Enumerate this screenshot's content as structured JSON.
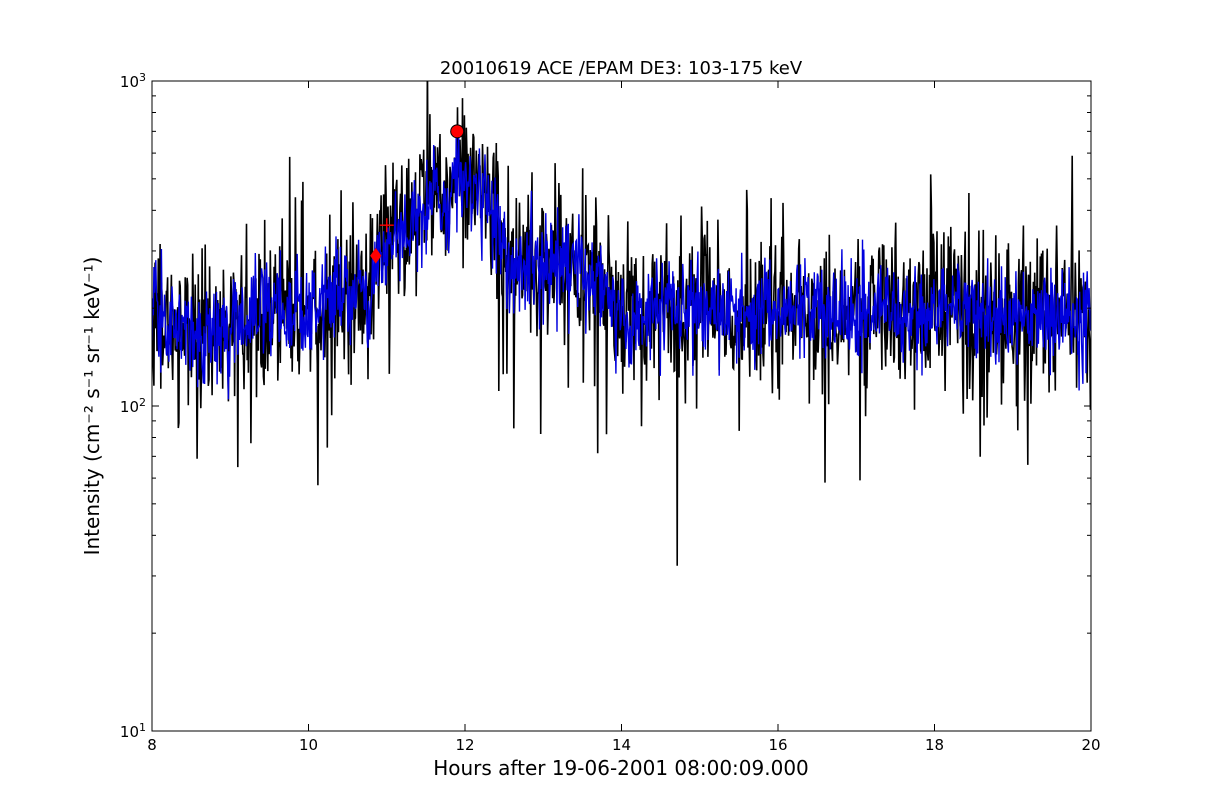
{
  "chart_data": {
    "type": "line",
    "title": "20010619 ACE /EPAM DE3: 103-175 keV",
    "xlabel": "Hours after 19-06-2001 08:00:09.000",
    "ylabel": "Intensity (cm⁻² s⁻¹ sr⁻¹ keV⁻¹)",
    "xlim": [
      8,
      20
    ],
    "ylim": [
      10,
      1000
    ],
    "yscale": "log",
    "grid": false,
    "x_ticks": [
      8,
      10,
      12,
      14,
      16,
      18,
      20
    ],
    "x_tick_labels": [
      "8",
      "10",
      "12",
      "14",
      "16",
      "18",
      "20"
    ],
    "y_ticks": [
      10,
      100,
      1000
    ],
    "y_tick_labels": [
      {
        "base": "10",
        "exp": "1"
      },
      {
        "base": "10",
        "exp": "2"
      },
      {
        "base": "10",
        "exp": "3"
      }
    ],
    "series": [
      {
        "color": "#000000",
        "x": [
          8.0,
          8.25,
          8.5,
          8.75,
          9.0,
          9.25,
          9.5,
          9.75,
          10.0,
          10.25,
          10.5,
          10.75,
          10.85,
          11.0,
          11.25,
          11.5,
          11.6,
          11.75,
          11.9,
          12.0,
          12.1,
          12.25,
          12.4,
          12.5,
          12.75,
          13.0,
          13.25,
          13.5,
          13.75,
          14.0,
          14.25,
          14.5,
          14.75,
          15.0,
          15.25,
          15.5,
          15.75,
          16.0,
          16.25,
          16.5,
          16.75,
          17.0,
          17.25,
          17.5,
          17.75,
          18.0,
          18.25,
          18.5,
          18.75,
          19.0,
          19.25,
          19.5,
          19.75,
          20.0
        ],
        "y": [
          200,
          180,
          170,
          160,
          175,
          200,
          210,
          205,
          200,
          215,
          240,
          210,
          250,
          330,
          340,
          420,
          500,
          400,
          560,
          500,
          480,
          470,
          380,
          300,
          260,
          280,
          270,
          260,
          250,
          190,
          185,
          210,
          200,
          205,
          195,
          200,
          190,
          205,
          210,
          200,
          195,
          205,
          200,
          195,
          190,
          200,
          205,
          195,
          190,
          190,
          195,
          200,
          190,
          185
        ]
      },
      {
        "color": "#0000dd",
        "x": [
          8.0,
          8.25,
          8.5,
          8.75,
          9.0,
          9.25,
          9.5,
          9.75,
          10.0,
          10.25,
          10.5,
          10.75,
          10.85,
          11.0,
          11.25,
          11.5,
          11.6,
          11.75,
          11.9,
          12.0,
          12.1,
          12.25,
          12.4,
          12.5,
          12.75,
          13.0,
          13.25,
          13.5,
          13.75,
          14.0,
          14.25,
          14.5,
          14.75,
          15.0,
          15.25,
          15.5,
          15.75,
          16.0,
          16.25,
          16.5,
          16.75,
          17.0,
          17.25,
          17.5,
          17.75,
          18.0,
          18.25,
          18.5,
          18.75,
          19.0,
          19.25,
          19.5,
          19.75,
          20.0
        ],
        "y": [
          195,
          175,
          165,
          160,
          170,
          195,
          205,
          200,
          195,
          210,
          235,
          205,
          245,
          320,
          330,
          410,
          480,
          390,
          540,
          490,
          470,
          455,
          370,
          290,
          255,
          270,
          265,
          255,
          245,
          185,
          180,
          205,
          195,
          200,
          190,
          195,
          185,
          200,
          205,
          195,
          190,
          200,
          195,
          190,
          185,
          195,
          200,
          190,
          185,
          185,
          190,
          195,
          185,
          180
        ]
      }
    ],
    "markers": [
      {
        "shape": "circle",
        "x": 11.9,
        "y": 700,
        "color": "#ff0000"
      },
      {
        "shape": "diamond",
        "x": 10.86,
        "y": 290,
        "color": "#ff0000"
      },
      {
        "shape": "plus",
        "x": 11.0,
        "y": 360,
        "color": "#ff0000"
      }
    ]
  }
}
